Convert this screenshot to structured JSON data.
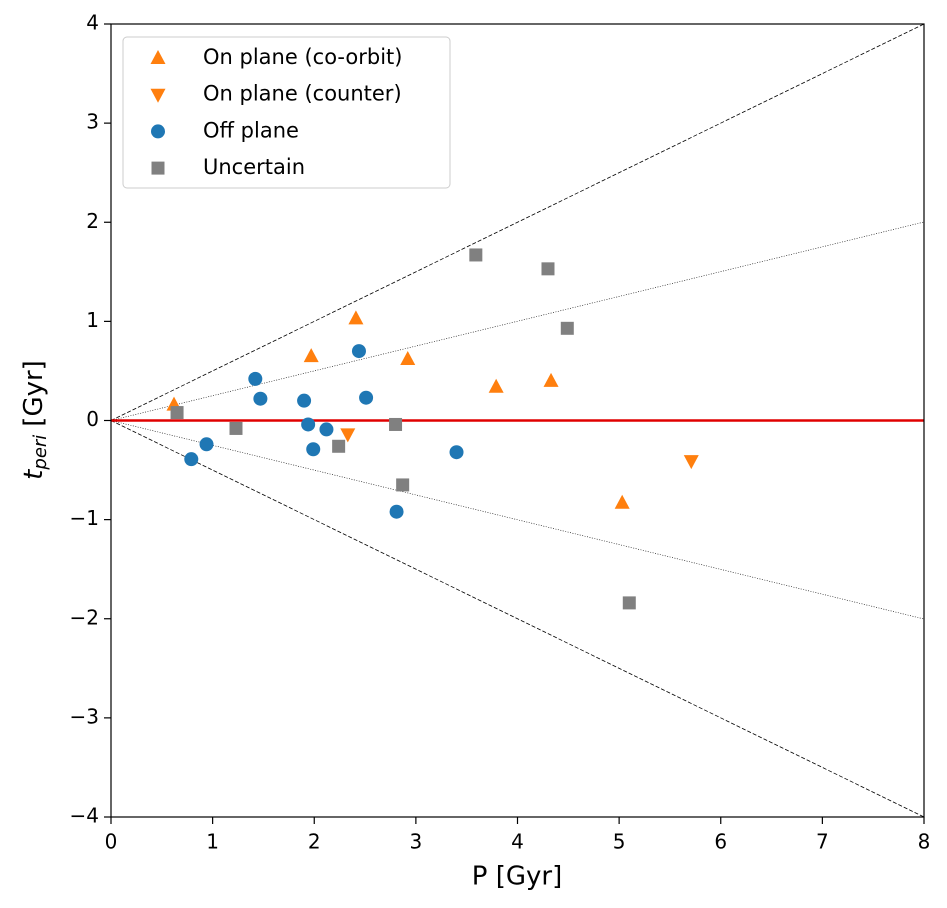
{
  "chart_data": {
    "type": "scatter",
    "xlabel": "P [Gyr]",
    "ylabel": {
      "symbol": "t",
      "subscript": "peri",
      "unit": "[Gyr]"
    },
    "xlim": [
      0,
      8
    ],
    "ylim": [
      -4,
      4
    ],
    "xticks": [
      0,
      1,
      2,
      3,
      4,
      5,
      6,
      7,
      8
    ],
    "yticks": [
      {
        "value": -4,
        "label": "−4"
      },
      {
        "value": -3,
        "label": "−3"
      },
      {
        "value": -2,
        "label": "−2"
      },
      {
        "value": -1,
        "label": "−1"
      },
      0,
      1,
      2,
      3,
      4
    ],
    "legend": "upper left",
    "series": [
      {
        "name": "On plane (co-orbit)",
        "color": "#ff7f0e",
        "marker": "triangle-up",
        "x": [
          0.62,
          1.97,
          2.41,
          2.92,
          3.79,
          4.33,
          5.03
        ],
        "y": [
          0.16,
          0.65,
          1.03,
          0.62,
          0.34,
          0.4,
          -0.83
        ]
      },
      {
        "name": "On plane (counter)",
        "color": "#ff7f0e",
        "marker": "triangle-down",
        "x": [
          2.33,
          5.71
        ],
        "y": [
          -0.14,
          -0.41
        ]
      },
      {
        "name": "Off plane",
        "color": "#1f77b4",
        "marker": "circle",
        "x": [
          0.79,
          0.94,
          1.42,
          1.47,
          1.9,
          1.94,
          1.99,
          2.12,
          2.44,
          2.51,
          2.81,
          3.4
        ],
        "y": [
          -0.39,
          -0.24,
          0.42,
          0.22,
          0.2,
          -0.04,
          -0.29,
          -0.09,
          0.7,
          0.23,
          -0.92,
          -0.32
        ]
      },
      {
        "name": "Uncertain",
        "color": "#808080",
        "marker": "square",
        "x": [
          0.65,
          1.23,
          2.24,
          2.8,
          2.87,
          3.59,
          4.3,
          4.49,
          5.1
        ],
        "y": [
          0.08,
          -0.08,
          -0.26,
          -0.04,
          -0.65,
          1.67,
          1.53,
          0.93,
          -1.84
        ]
      }
    ]
  }
}
